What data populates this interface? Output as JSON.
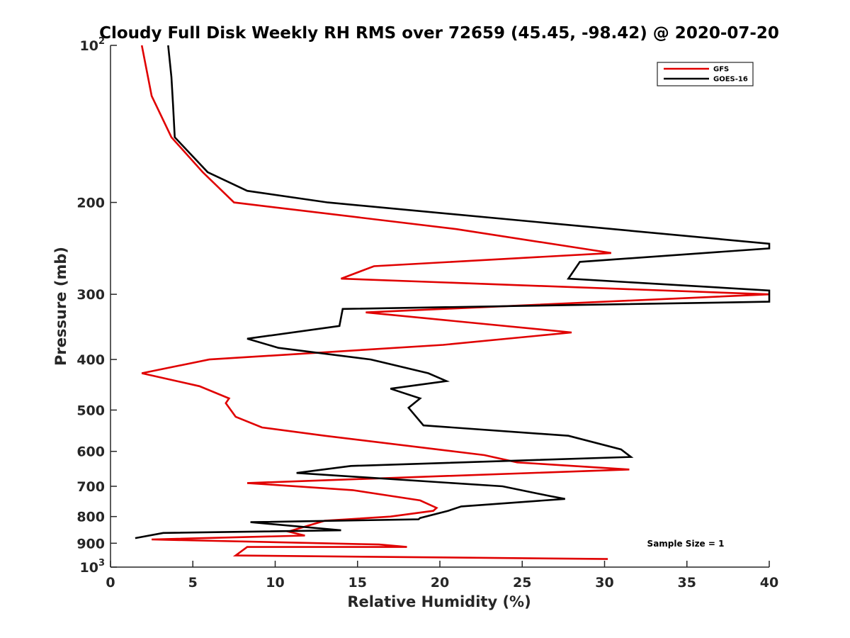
{
  "chart_data": {
    "type": "line",
    "title": "Cloudy Full Disk Weekly RH RMS over 72659 (45.45, -98.42) @ 2020-07-20",
    "xlabel": "Relative Humidity (%)",
    "ylabel": "Pressure (mb)",
    "xlim": [
      0,
      40
    ],
    "ylim": [
      100,
      1000
    ],
    "yscale": "log",
    "y_reversed": true,
    "grid": false,
    "legend_position": "top-right",
    "x_ticks": [
      "0",
      "5",
      "10",
      "15",
      "20",
      "25",
      "30",
      "35",
      "40"
    ],
    "y_ticks": [
      {
        "value": 100,
        "base": "10",
        "exp": "2"
      },
      {
        "value": 200,
        "label": "200"
      },
      {
        "value": 300,
        "label": "300"
      },
      {
        "value": 400,
        "label": "400"
      },
      {
        "value": 500,
        "label": "500"
      },
      {
        "value": 600,
        "label": "600"
      },
      {
        "value": 700,
        "label": "700"
      },
      {
        "value": 800,
        "label": "800"
      },
      {
        "value": 900,
        "label": "900"
      },
      {
        "value": 1000,
        "base": "10",
        "exp": "3"
      }
    ],
    "series": [
      {
        "name": "GFS",
        "color": "#e00000",
        "points": [
          [
            1.9,
            100
          ],
          [
            2.5,
            125
          ],
          [
            3.7,
            150
          ],
          [
            5.6,
            175
          ],
          [
            7.5,
            200
          ],
          [
            21,
            225
          ],
          [
            30.4,
            250
          ],
          [
            16,
            265
          ],
          [
            14,
            280
          ],
          [
            40,
            300
          ],
          [
            15.5,
            325
          ],
          [
            28,
            355
          ],
          [
            20.2,
            375
          ],
          [
            6,
            400
          ],
          [
            1.9,
            425
          ],
          [
            5.4,
            450
          ],
          [
            7.2,
            475
          ],
          [
            7,
            485
          ],
          [
            7.6,
            515
          ],
          [
            9.2,
            540
          ],
          [
            13,
            560
          ],
          [
            22.7,
            610
          ],
          [
            24.7,
            630
          ],
          [
            31.5,
            650
          ],
          [
            8.3,
            690
          ],
          [
            14.7,
            712
          ],
          [
            18.8,
            745
          ],
          [
            19.8,
            770
          ],
          [
            19.6,
            780
          ],
          [
            17,
            800
          ],
          [
            13,
            815
          ],
          [
            10.8,
            855
          ],
          [
            11.8,
            870
          ],
          [
            2.5,
            885
          ],
          [
            16.3,
            905
          ],
          [
            18,
            915
          ],
          [
            8.3,
            915
          ],
          [
            7.6,
            950
          ],
          [
            30.2,
            965
          ]
        ]
      },
      {
        "name": "GOES-16",
        "color": "#000000",
        "points": [
          [
            3.5,
            100
          ],
          [
            3.7,
            115
          ],
          [
            3.8,
            130
          ],
          [
            3.9,
            150
          ],
          [
            5.9,
            175
          ],
          [
            8.3,
            190
          ],
          [
            13.2,
            200
          ],
          [
            40,
            240
          ],
          [
            40,
            245
          ],
          [
            28.5,
            260
          ],
          [
            27.8,
            280
          ],
          [
            40,
            295
          ],
          [
            40,
            310
          ],
          [
            14.1,
            320
          ],
          [
            13.9,
            345
          ],
          [
            8.3,
            365
          ],
          [
            10.2,
            380
          ],
          [
            15.8,
            400
          ],
          [
            19.3,
            425
          ],
          [
            20.4,
            440
          ],
          [
            17,
            455
          ],
          [
            18.8,
            475
          ],
          [
            18.1,
            495
          ],
          [
            19,
            535
          ],
          [
            27.8,
            560
          ],
          [
            31.0,
            595
          ],
          [
            31.6,
            615
          ],
          [
            14.6,
            640
          ],
          [
            11.3,
            660
          ],
          [
            23.8,
            700
          ],
          [
            26.6,
            730
          ],
          [
            27.6,
            740
          ],
          [
            21.3,
            765
          ],
          [
            20.5,
            780
          ],
          [
            18.8,
            805
          ],
          [
            18.7,
            810
          ],
          [
            8.5,
            820
          ],
          [
            14,
            850
          ],
          [
            3.2,
            860
          ],
          [
            1.5,
            880
          ]
        ]
      }
    ],
    "annotation": "Sample Size = 1"
  }
}
